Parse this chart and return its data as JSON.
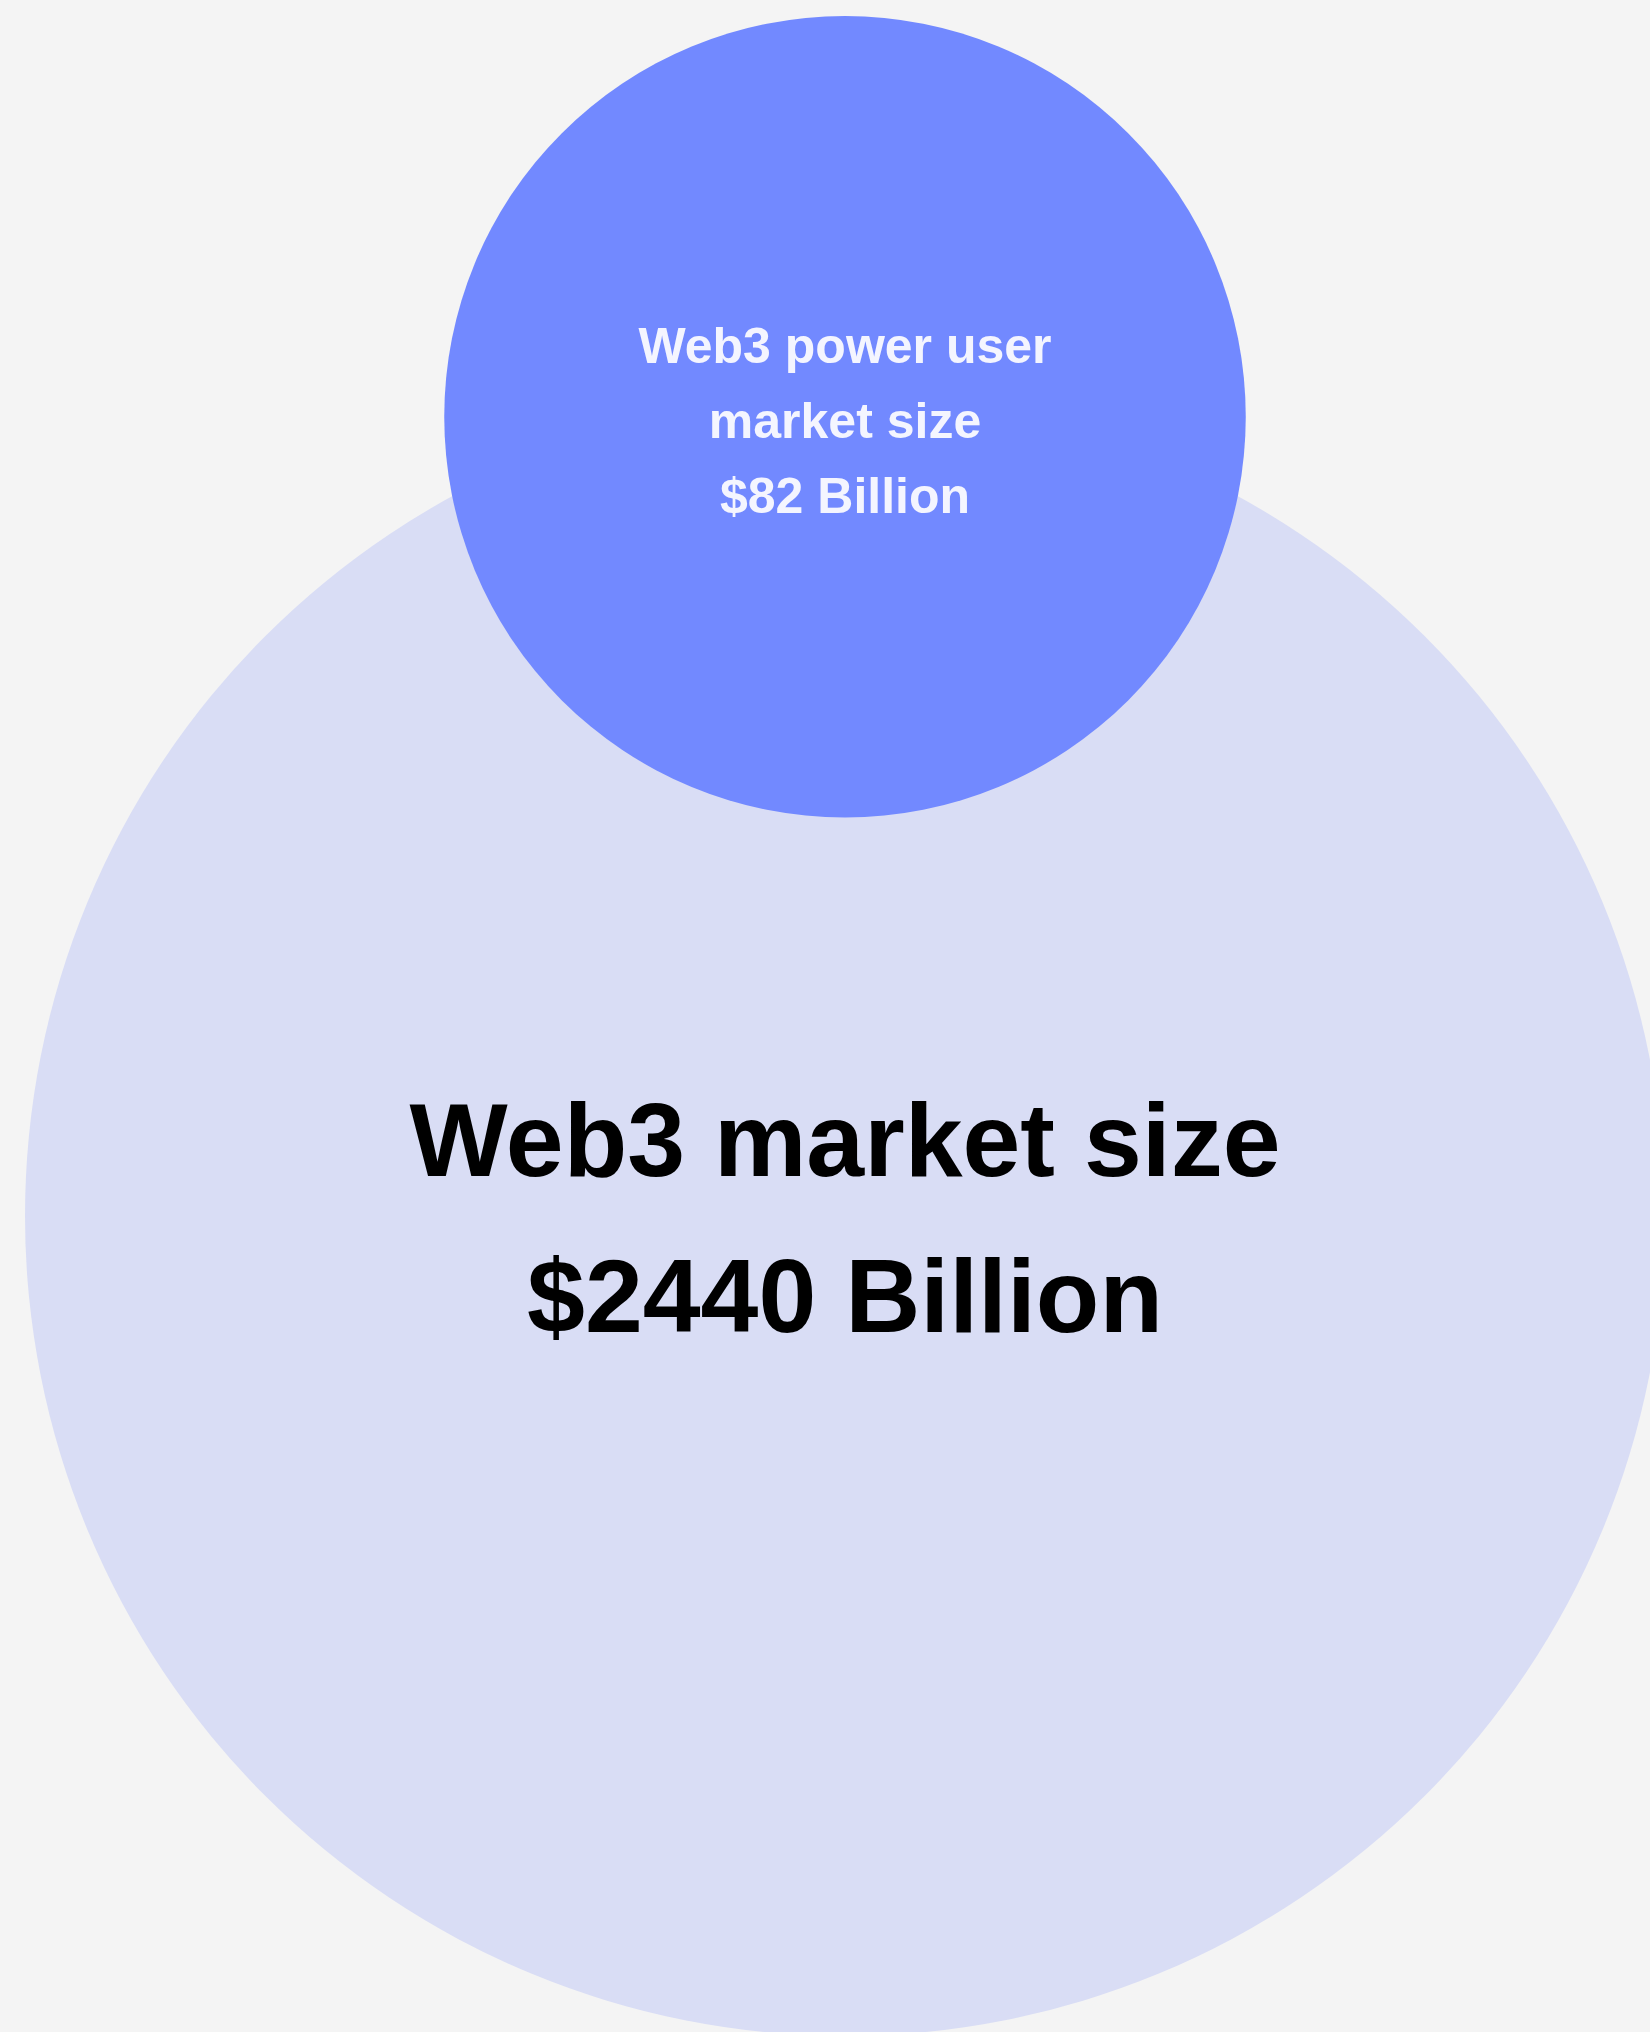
{
  "chart_data": {
    "type": "other",
    "categories": [
      "Web3 market size",
      "Web3 power user market size"
    ],
    "values": [
      2440,
      82
    ],
    "value_labels": [
      "$2440 Billion",
      "$82 Billion"
    ],
    "colors": [
      "#d9ddf5",
      "#7289ff"
    ]
  }
}
